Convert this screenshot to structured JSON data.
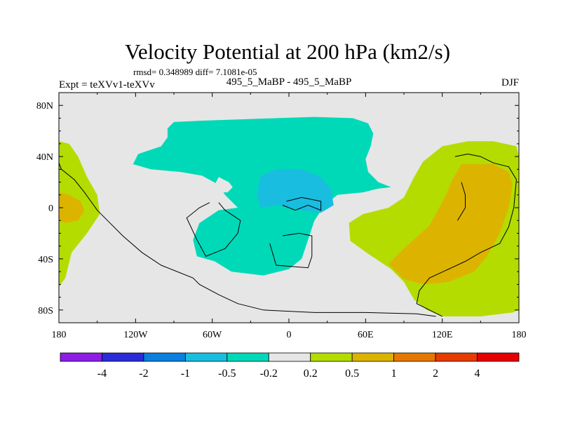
{
  "chart_data": {
    "type": "heatmap",
    "title": "Velocity Potential at 200 hPa (km2/s)",
    "stats_line": "rmsd= 0.348989 diff= 7.1081e-05",
    "left_label": "Expt = teXVv1-teXVv",
    "center_label": "495_5_MaBP - 495_5_MaBP",
    "right_label": "DJF",
    "x_ticks": [
      {
        "lon": -180,
        "label": "180"
      },
      {
        "lon": -120,
        "label": "120W"
      },
      {
        "lon": -60,
        "label": "60W"
      },
      {
        "lon": 0,
        "label": "0"
      },
      {
        "lon": 60,
        "label": "60E"
      },
      {
        "lon": 120,
        "label": "120E"
      },
      {
        "lon": 180,
        "label": "180"
      }
    ],
    "y_ticks": [
      {
        "lat": 80,
        "label": "80N"
      },
      {
        "lat": 40,
        "label": "40N"
      },
      {
        "lat": 0,
        "label": "0"
      },
      {
        "lat": -40,
        "label": "40S"
      },
      {
        "lat": -80,
        "label": "80S"
      }
    ],
    "xlim": [
      -180,
      180
    ],
    "ylim": [
      -90,
      90
    ],
    "levels": [
      "-4",
      "-2",
      "-1",
      "-0.5",
      "-0.2",
      "0.2",
      "0.5",
      "1",
      "2",
      "4"
    ],
    "colorbar_colors": [
      "#8c1ee6",
      "#2b2bd9",
      "#0a7fe0",
      "#19bde0",
      "#00d9b8",
      "#e6e6e6",
      "#b4dc00",
      "#dcb400",
      "#e67800",
      "#e63c00",
      "#e60000"
    ],
    "background_color": "#e6e6e6",
    "fields": [
      {
        "name": "negative anomaly region (-0.5 to -0.2)",
        "range": "-0.5 to -0.2",
        "color": "#00d9b8",
        "outline_lonlat": [
          [
            -95,
            62
          ],
          [
            -90,
            67
          ],
          [
            -70,
            68
          ],
          [
            -40,
            69
          ],
          [
            -10,
            70
          ],
          [
            20,
            71
          ],
          [
            50,
            70
          ],
          [
            62,
            66
          ],
          [
            66,
            58
          ],
          [
            64,
            48
          ],
          [
            60,
            38
          ],
          [
            62,
            28
          ],
          [
            70,
            20
          ],
          [
            80,
            16
          ],
          [
            70,
            15
          ],
          [
            58,
            12
          ],
          [
            38,
            10
          ],
          [
            28,
            2
          ],
          [
            20,
            -10
          ],
          [
            15,
            -25
          ],
          [
            10,
            -40
          ],
          [
            0,
            -48
          ],
          [
            -20,
            -53
          ],
          [
            -45,
            -50
          ],
          [
            -58,
            -42
          ],
          [
            -72,
            -38
          ],
          [
            -75,
            -25
          ],
          [
            -70,
            -12
          ],
          [
            -55,
            -2
          ],
          [
            -40,
            0
          ],
          [
            -45,
            5
          ],
          [
            -50,
            10
          ],
          [
            -55,
            18
          ],
          [
            -68,
            25
          ],
          [
            -85,
            28
          ],
          [
            -108,
            30
          ],
          [
            -122,
            34
          ],
          [
            -118,
            42
          ],
          [
            -100,
            48
          ],
          [
            -95,
            55
          ]
        ]
      },
      {
        "name": "negative anomaly core (-1 to -0.5)",
        "range": "-1 to -0.5",
        "color": "#19bde0",
        "outline_lonlat": [
          [
            -22,
            25
          ],
          [
            -10,
            30
          ],
          [
            10,
            30
          ],
          [
            25,
            24
          ],
          [
            33,
            14
          ],
          [
            35,
            2
          ],
          [
            25,
            -4
          ],
          [
            10,
            -2
          ],
          [
            -10,
            2
          ],
          [
            -22,
            0
          ],
          [
            -25,
            10
          ]
        ]
      },
      {
        "name": "positive anomaly region (0.2 to 0.5) Asia-Pacific",
        "range": "0.2 to 0.5",
        "color": "#b4dc00",
        "outline_lonlat": [
          [
            120,
            48
          ],
          [
            140,
            52
          ],
          [
            160,
            52
          ],
          [
            178,
            48
          ],
          [
            180,
            40
          ],
          [
            180,
            -80
          ],
          [
            175,
            -82
          ],
          [
            150,
            -85
          ],
          [
            120,
            -85
          ],
          [
            108,
            -80
          ],
          [
            98,
            -72
          ],
          [
            90,
            -58
          ],
          [
            80,
            -48
          ],
          [
            62,
            -36
          ],
          [
            48,
            -26
          ],
          [
            47,
            -12
          ],
          [
            58,
            -5
          ],
          [
            78,
            0
          ],
          [
            90,
            8
          ],
          [
            98,
            24
          ],
          [
            105,
            36
          ]
        ]
      },
      {
        "name": "positive anomaly core (0.5 to 1) Asia-Pacific",
        "range": "0.5 to 1",
        "color": "#dcb400",
        "outline_lonlat": [
          [
            135,
            34
          ],
          [
            160,
            34
          ],
          [
            172,
            28
          ],
          [
            175,
            18
          ],
          [
            172,
            0
          ],
          [
            165,
            -20
          ],
          [
            155,
            -38
          ],
          [
            145,
            -50
          ],
          [
            125,
            -58
          ],
          [
            105,
            -60
          ],
          [
            90,
            -56
          ],
          [
            78,
            -44
          ],
          [
            92,
            -30
          ],
          [
            110,
            -14
          ],
          [
            122,
            8
          ],
          [
            128,
            22
          ]
        ]
      },
      {
        "name": "positive anomaly region (0.2 to 0.5) west",
        "range": "0.2 to 0.5",
        "color": "#b4dc00",
        "outline_lonlat": [
          [
            -180,
            52
          ],
          [
            -172,
            50
          ],
          [
            -165,
            40
          ],
          [
            -158,
            24
          ],
          [
            -150,
            10
          ],
          [
            -148,
            -5
          ],
          [
            -158,
            -20
          ],
          [
            -170,
            -35
          ],
          [
            -175,
            -55
          ],
          [
            -180,
            -62
          ]
        ]
      },
      {
        "name": "positive anomaly core (0.5 to 1) west",
        "range": "0.5 to 1",
        "color": "#dcb400",
        "outline_lonlat": [
          [
            -180,
            12
          ],
          [
            -172,
            10
          ],
          [
            -163,
            5
          ],
          [
            -160,
            -2
          ],
          [
            -165,
            -10
          ],
          [
            -175,
            -12
          ],
          [
            -180,
            -10
          ]
        ]
      },
      {
        "name": "positive anomaly edge east",
        "range": "0.2 to 0.5",
        "color": "#b4dc00",
        "outline_lonlat": [
          [
            180,
            30
          ],
          [
            176,
            15
          ],
          [
            175,
            -10
          ],
          [
            180,
            -20
          ]
        ]
      },
      {
        "name": "near-zero region (-0.2 to 0.2) over South America",
        "range": "-0.2 to 0.2",
        "color": "#e6e6e6",
        "outline_lonlat": [
          [
            -47,
            20
          ],
          [
            -55,
            24
          ],
          [
            -58,
            18
          ],
          [
            -55,
            12
          ],
          [
            -48,
            12
          ],
          [
            -44,
            16
          ]
        ]
      }
    ],
    "land_outlines": [
      {
        "name": "coastline Americas to Antarctica",
        "lonlat": [
          [
            -180,
            35
          ],
          [
            -178,
            30
          ],
          [
            -168,
            22
          ],
          [
            -160,
            12
          ],
          [
            -150,
            -2
          ],
          [
            -142,
            -10
          ],
          [
            -130,
            -22
          ],
          [
            -115,
            -35
          ],
          [
            -100,
            -45
          ],
          [
            -75,
            -55
          ],
          [
            -70,
            -60
          ],
          [
            -55,
            -68
          ],
          [
            -40,
            -75
          ],
          [
            -20,
            -80
          ],
          [
            20,
            -82
          ],
          [
            60,
            -82
          ],
          [
            100,
            -83
          ],
          [
            115,
            -85
          ]
        ]
      },
      {
        "name": "coastline South America",
        "lonlat": [
          [
            -62,
            4
          ],
          [
            -70,
            0
          ],
          [
            -80,
            -8
          ],
          [
            -72,
            -25
          ],
          [
            -65,
            -38
          ],
          [
            -50,
            -32
          ],
          [
            -40,
            -20
          ],
          [
            -38,
            -10
          ],
          [
            -50,
            -2
          ],
          [
            -55,
            4
          ]
        ]
      },
      {
        "name": "coastline Africa (south)",
        "lonlat": [
          [
            -15,
            -28
          ],
          [
            -12,
            -38
          ],
          [
            -10,
            -45
          ],
          [
            15,
            -47
          ],
          [
            18,
            -38
          ],
          [
            18,
            -22
          ],
          [
            8,
            -20
          ],
          [
            -5,
            -22
          ]
        ]
      },
      {
        "name": "coastline Equatorial Africa",
        "lonlat": [
          [
            -5,
            2
          ],
          [
            5,
            -2
          ],
          [
            15,
            2
          ],
          [
            25,
            -2
          ],
          [
            25,
            5
          ],
          [
            10,
            8
          ],
          [
            -2,
            5
          ]
        ]
      },
      {
        "name": "coastline Asia (east)",
        "lonlat": [
          [
            130,
            40
          ],
          [
            140,
            42
          ],
          [
            150,
            40
          ],
          [
            160,
            35
          ],
          [
            172,
            32
          ],
          [
            178,
            22
          ],
          [
            176,
            0
          ],
          [
            172,
            -15
          ],
          [
            165,
            -28
          ],
          [
            150,
            -35
          ],
          [
            138,
            -42
          ],
          [
            125,
            -48
          ],
          [
            110,
            -55
          ],
          [
            102,
            -65
          ],
          [
            100,
            -75
          ],
          [
            110,
            -80
          ],
          [
            120,
            -85
          ]
        ]
      },
      {
        "name": "coastline Asia (west)",
        "lonlat": [
          [
            135,
            20
          ],
          [
            138,
            10
          ],
          [
            138,
            0
          ],
          [
            132,
            -10
          ]
        ]
      }
    ]
  }
}
